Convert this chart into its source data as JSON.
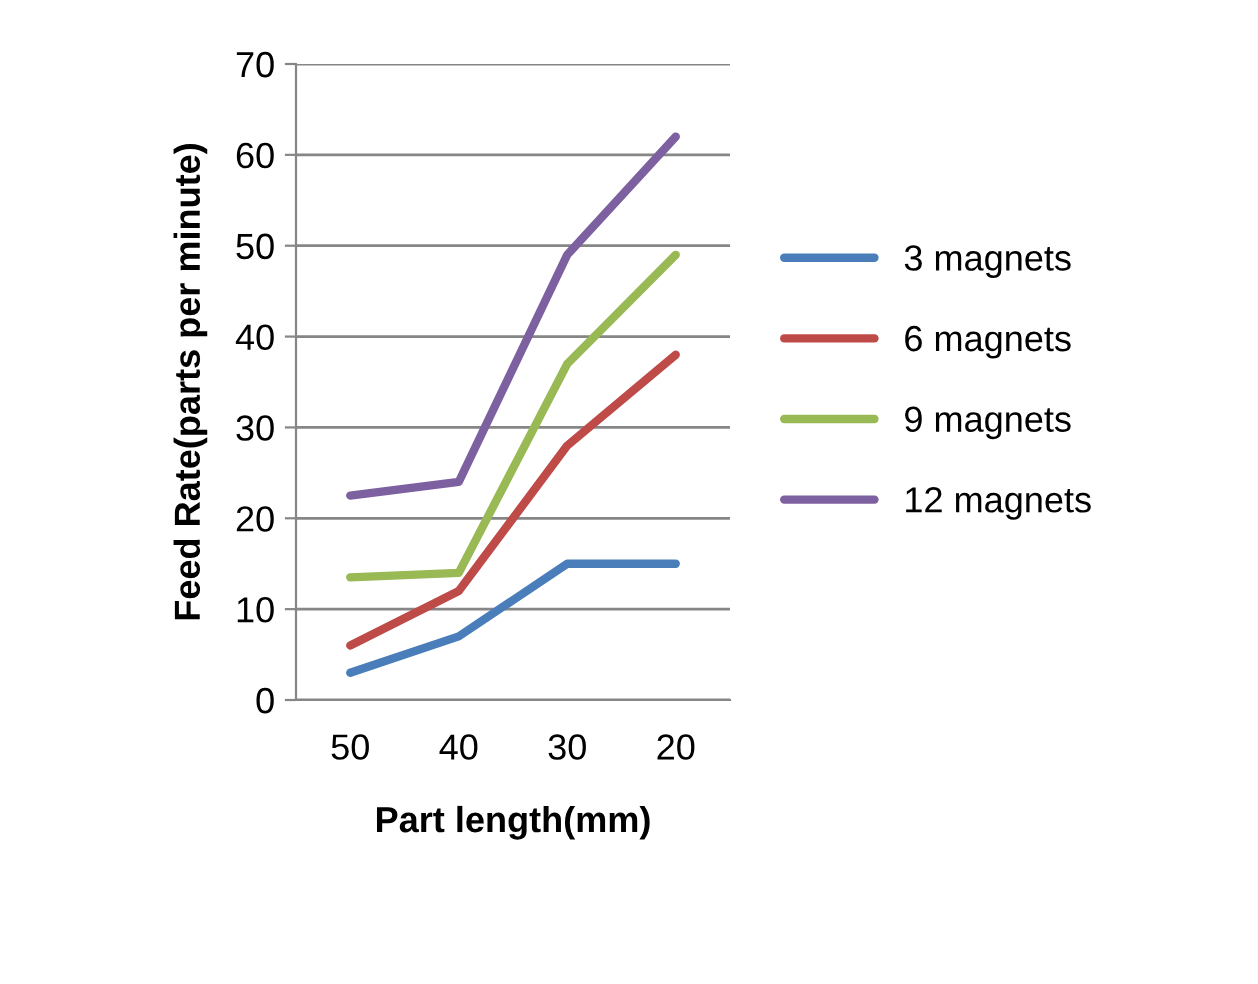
{
  "chart_data": {
    "type": "line",
    "xlabel": "Part length(mm)",
    "ylabel": "Feed Rate(parts per minute)",
    "categories": [
      "50",
      "40",
      "30",
      "20"
    ],
    "series": [
      {
        "name": "3 magnets",
        "color": "#4a7ebb",
        "values": [
          3,
          7,
          15,
          15
        ]
      },
      {
        "name": "6 magnets",
        "color": "#be4b48",
        "values": [
          6,
          12,
          28,
          38
        ]
      },
      {
        "name": "9 magnets",
        "color": "#98b954",
        "values": [
          13.5,
          14,
          37,
          49
        ]
      },
      {
        "name": "12 magnets",
        "color": "#7d60a0",
        "values": [
          22.5,
          24,
          49,
          62
        ]
      }
    ],
    "ylim": [
      0,
      70
    ],
    "yticks": [
      0,
      10,
      20,
      30,
      40,
      50,
      60,
      70
    ],
    "grid": "y",
    "legend": "right"
  }
}
